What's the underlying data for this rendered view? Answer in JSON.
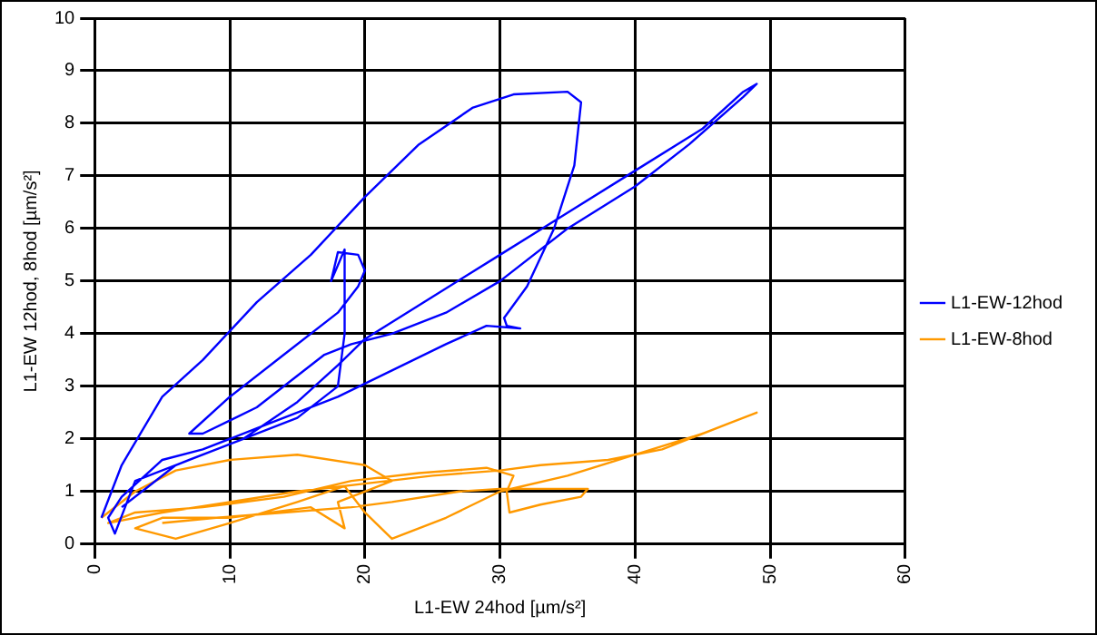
{
  "chart_data": {
    "type": "line",
    "xlabel": "L1-EW 24hod [µm/s²]",
    "ylabel": "L1-EW 12hod, 8hod [µm/s²]",
    "xlim": [
      0,
      60
    ],
    "xticks": [
      0,
      10,
      20,
      30,
      40,
      50,
      60
    ],
    "ylim": [
      0,
      10
    ],
    "yticks": [
      0,
      1,
      2,
      3,
      4,
      5,
      6,
      7,
      8,
      9,
      10
    ],
    "grid": true,
    "legend": "right",
    "marker": "none",
    "line_style": "solid",
    "series": [
      {
        "name": "L1-EW-12hod",
        "color": "#0000ff",
        "x": [
          0.5,
          2,
          5,
          8,
          12,
          16,
          20,
          24,
          28,
          31,
          35,
          36,
          35.5,
          34,
          32,
          30.3,
          30.5,
          31.5,
          29,
          26,
          22,
          18,
          12,
          8,
          5,
          2,
          1,
          1.5,
          3,
          7,
          11,
          15,
          18,
          20,
          25,
          30,
          35,
          40,
          45,
          48,
          49,
          48,
          44,
          40,
          35,
          30,
          26,
          22,
          19,
          17,
          12,
          8,
          7,
          10,
          14,
          18,
          19.5,
          20,
          19.5,
          18,
          17.5,
          18.5,
          18.5,
          18,
          15,
          10,
          6,
          4,
          2
        ],
        "values": [
          0.5,
          1.5,
          2.8,
          3.5,
          4.6,
          5.5,
          6.6,
          7.6,
          8.3,
          8.55,
          8.6,
          8.4,
          7.2,
          6,
          4.9,
          4.3,
          4.15,
          4.1,
          4.15,
          3.8,
          3.3,
          2.8,
          2.2,
          1.8,
          1.6,
          0.9,
          0.5,
          0.2,
          1.2,
          1.6,
          2,
          2.7,
          3.4,
          3.9,
          4.7,
          5.5,
          6.3,
          7.1,
          7.9,
          8.6,
          8.75,
          8.5,
          7.6,
          6.8,
          6,
          5,
          4.4,
          4,
          3.8,
          3.6,
          2.6,
          2.1,
          2.1,
          2.8,
          3.6,
          4.4,
          4.9,
          5.2,
          5.5,
          5.55,
          5,
          5.6,
          4,
          3,
          2.4,
          1.9,
          1.5,
          1.1,
          0.7
        ]
      },
      {
        "name": "L1-EW-8hod",
        "color": "#ff9900",
        "x": [
          0.5,
          3,
          6,
          10,
          15,
          20,
          22,
          20,
          18,
          18.5,
          16,
          10,
          5,
          3,
          6,
          10,
          15,
          18.5,
          20,
          22,
          26,
          30,
          35,
          40,
          45,
          49,
          47,
          42,
          38,
          33,
          30,
          25,
          20,
          15,
          10,
          5,
          1,
          3,
          8,
          14,
          19,
          24,
          29,
          31,
          30.5,
          30.7,
          33,
          36,
          36.5,
          33,
          30,
          27,
          22,
          19,
          14,
          9,
          5
        ],
        "values": [
          0.5,
          1,
          1.4,
          1.6,
          1.7,
          1.5,
          1.2,
          1,
          0.8,
          0.3,
          0.7,
          0.5,
          0.5,
          0.3,
          0.1,
          0.4,
          0.8,
          1.1,
          0.6,
          0.1,
          0.5,
          1,
          1.3,
          1.7,
          2.1,
          2.5,
          2.3,
          1.8,
          1.6,
          1.5,
          1.4,
          1.3,
          1.15,
          1,
          0.8,
          0.6,
          0.4,
          0.6,
          0.7,
          0.9,
          1.2,
          1.35,
          1.45,
          1.3,
          1,
          0.6,
          0.75,
          0.9,
          1.05,
          1.05,
          1.05,
          1,
          0.8,
          0.7,
          0.6,
          0.5,
          0.4
        ]
      }
    ]
  }
}
